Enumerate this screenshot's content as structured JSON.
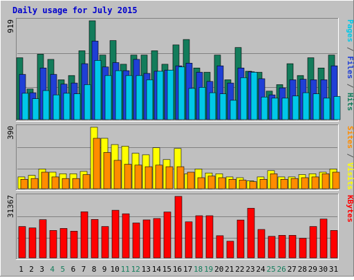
{
  "chart_data": {
    "type": "bar",
    "title": "Daily usage for July 2015",
    "categories": [
      "1",
      "2",
      "3",
      "4",
      "5",
      "6",
      "7",
      "8",
      "9",
      "10",
      "11",
      "12",
      "13",
      "14",
      "15",
      "16",
      "17",
      "18",
      "19",
      "20",
      "21",
      "22",
      "23",
      "24",
      "25",
      "26",
      "27",
      "28",
      "29",
      "30",
      "31"
    ],
    "weekend_days": [
      "4",
      "5",
      "11",
      "12",
      "18",
      "19",
      "25",
      "26"
    ],
    "panels": [
      {
        "id": "hits-files-pages",
        "max_label": "919",
        "ylim": [
          0,
          919
        ],
        "axis_labels": [
          {
            "text": "Pages",
            "color": "#00c8e8"
          },
          {
            "text": " / ",
            "color": "#555555"
          },
          {
            "text": "Files",
            "color": "#1f3fd6"
          },
          {
            "text": " / ",
            "color": "#555555"
          },
          {
            "text": "Hits",
            "color": "#137c5b"
          }
        ],
        "series": [
          {
            "name": "Hits",
            "color": "#137c5b",
            "values": [
              575,
              285,
              608,
              560,
              370,
              410,
              640,
              919,
              600,
              735,
              515,
              600,
              600,
              640,
              515,
              695,
              745,
              480,
              440,
              600,
              370,
              670,
              450,
              440,
              265,
              325,
              520,
              410,
              575,
              480,
              600
            ]
          },
          {
            "name": "Files",
            "color": "#1f3fd6",
            "values": [
              420,
              250,
              480,
              420,
              330,
              340,
              520,
              730,
              490,
              530,
              455,
              560,
              430,
              450,
              460,
              500,
              525,
              440,
              355,
              500,
              340,
              480,
              445,
              380,
              230,
              295,
              370,
              375,
              370,
              370,
              500
            ]
          },
          {
            "name": "Pages",
            "color": "#00c8e8",
            "values": [
              245,
              195,
              270,
              230,
              245,
              240,
              325,
              550,
              410,
              455,
              410,
              410,
              370,
              450,
              460,
              490,
              290,
              300,
              250,
              240,
              180,
              390,
              440,
              210,
              200,
              200,
              220,
              250,
              240,
              200,
              215
            ]
          }
        ]
      },
      {
        "id": "visits-sites",
        "max_label": "390",
        "ylim": [
          0,
          390
        ],
        "axis_labels": [
          {
            "text": "Sites",
            "color": "#ff8c00"
          },
          {
            "text": " / ",
            "color": "#555555"
          },
          {
            "text": "Visits",
            "color": "#ffff00"
          }
        ],
        "series": [
          {
            "name": "Visits",
            "color": "#ffff00",
            "values": [
              75,
              85,
              125,
              105,
              95,
              95,
              110,
              390,
              320,
              280,
              270,
              225,
              215,
              260,
              185,
              255,
              95,
              125,
              100,
              95,
              75,
              70,
              50,
              75,
              115,
              75,
              75,
              90,
              95,
              105,
              125
            ]
          },
          {
            "name": "Sites",
            "color": "#ff8c00",
            "values": [
              60,
              65,
              105,
              75,
              65,
              65,
              90,
              320,
              230,
              180,
              155,
              150,
              140,
              150,
              140,
              140,
              105,
              70,
              80,
              70,
              60,
              55,
              45,
              60,
              95,
              60,
              65,
              70,
              75,
              95,
              105
            ]
          }
        ]
      },
      {
        "id": "kbytes",
        "max_label": "31367",
        "ylim": [
          0,
          31367
        ],
        "axis_labels": [
          {
            "text": "KBytes",
            "color": "#ff0000"
          }
        ],
        "series": [
          {
            "name": "KBytes",
            "color": "#ff0000",
            "values": [
              16000,
              15300,
              19500,
              14000,
              15000,
              13600,
              23500,
              19600,
              16000,
              24300,
              22500,
              17800,
              19400,
              20100,
              23400,
              31367,
              18400,
              21500,
              21500,
              11300,
              8500,
              19300,
              25300,
              14500,
              11000,
              11500,
              11500,
              10000,
              16000,
              19800,
              14000
            ]
          }
        ]
      }
    ]
  }
}
